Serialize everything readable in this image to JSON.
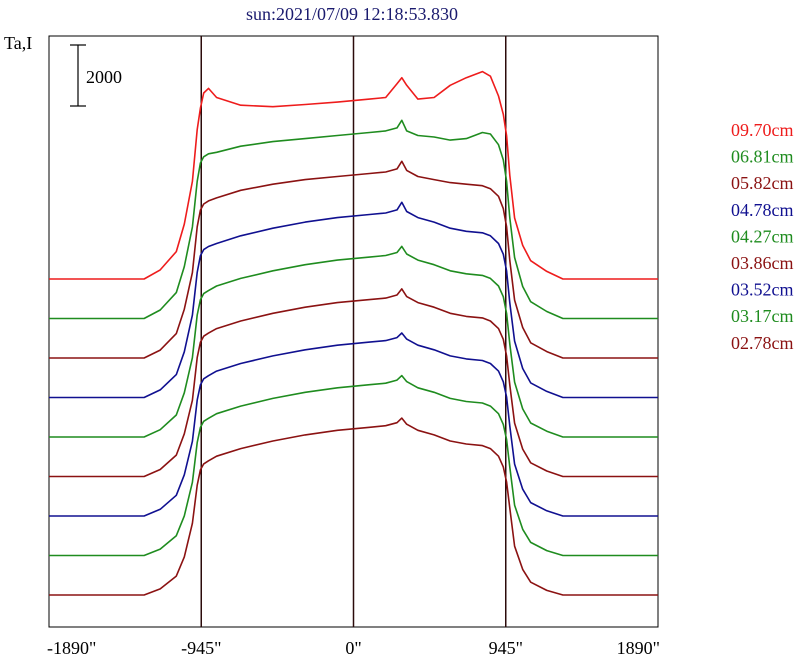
{
  "chart_data": {
    "type": "line",
    "title": "sun:2021/07/09 12:18:53.830",
    "ylabel": "Ta,I",
    "scale_bar_label": "2000",
    "x_ticks": [
      "-1890\"",
      "-945\"",
      "0\"",
      "945\"",
      "1890\""
    ],
    "x_tick_values": [
      -1890,
      -945,
      0,
      945,
      1890
    ],
    "xlim": [
      -1890,
      1890
    ],
    "vertical_lines": [
      -945,
      0,
      945
    ],
    "grid": false,
    "legend_position": "right",
    "x_knots": [
      -1890,
      -1300,
      -1200,
      -1100,
      -1050,
      -1000,
      -970,
      -950,
      -930,
      -900,
      -850,
      -700,
      -500,
      -300,
      -100,
      100,
      200,
      270,
      300,
      330,
      400,
      500,
      600,
      700,
      800,
      850,
      900,
      930,
      950,
      970,
      1000,
      1050,
      1100,
      1200,
      1300,
      1890
    ],
    "series": [
      {
        "name": "09.70cm",
        "color": "#ee1c1c",
        "baseline": 0,
        "values": [
          0,
          0,
          300,
          900,
          1800,
          3200,
          4900,
          5600,
          6100,
          6250,
          5950,
          5700,
          5650,
          5720,
          5800,
          5900,
          5950,
          6400,
          6600,
          6350,
          5900,
          5950,
          6350,
          6600,
          6800,
          6650,
          6000,
          5400,
          4700,
          3400,
          2000,
          1100,
          600,
          250,
          0,
          0
        ]
      },
      {
        "name": "06.81cm",
        "color": "#1f8c1f",
        "baseline": 0,
        "values": [
          0,
          0,
          280,
          850,
          1700,
          3000,
          4500,
          5100,
          5300,
          5400,
          5450,
          5650,
          5800,
          5900,
          6000,
          6100,
          6150,
          6250,
          6500,
          6150,
          6000,
          5950,
          5850,
          5900,
          6100,
          6050,
          5700,
          5200,
          4500,
          3300,
          2000,
          1050,
          550,
          230,
          0,
          0
        ]
      },
      {
        "name": "05.82cm",
        "color": "#8b1212",
        "baseline": 0,
        "values": [
          0,
          0,
          260,
          800,
          1600,
          2800,
          4300,
          4850,
          5050,
          5150,
          5250,
          5500,
          5700,
          5850,
          5950,
          6050,
          6100,
          6200,
          6450,
          6150,
          5950,
          5850,
          5750,
          5700,
          5650,
          5550,
          5300,
          4900,
          4300,
          3200,
          1900,
          1000,
          500,
          210,
          0,
          0
        ]
      },
      {
        "name": "04.78cm",
        "color": "#101090",
        "baseline": 0,
        "values": [
          0,
          0,
          250,
          750,
          1500,
          2700,
          4100,
          4650,
          4850,
          4950,
          5050,
          5300,
          5550,
          5750,
          5900,
          6000,
          6050,
          6150,
          6400,
          6100,
          5900,
          5750,
          5550,
          5450,
          5400,
          5300,
          5050,
          4700,
          4150,
          3100,
          1850,
          950,
          480,
          200,
          0,
          0
        ]
      },
      {
        "name": "04.27cm",
        "color": "#1f8c1f",
        "baseline": 0,
        "values": [
          0,
          0,
          240,
          720,
          1450,
          2600,
          4000,
          4500,
          4700,
          4800,
          4950,
          5200,
          5450,
          5650,
          5800,
          5900,
          5950,
          6050,
          6250,
          6000,
          5800,
          5650,
          5450,
          5350,
          5300,
          5200,
          4950,
          4600,
          4050,
          3050,
          1800,
          920,
          460,
          190,
          0,
          0
        ]
      },
      {
        "name": "03.86cm",
        "color": "#8b1212",
        "baseline": 0,
        "values": [
          0,
          0,
          230,
          700,
          1400,
          2500,
          3900,
          4400,
          4600,
          4700,
          4850,
          5100,
          5350,
          5550,
          5700,
          5800,
          5850,
          5950,
          6150,
          5900,
          5700,
          5550,
          5350,
          5250,
          5200,
          5100,
          4850,
          4500,
          3950,
          3000,
          1750,
          900,
          450,
          180,
          0,
          0
        ]
      },
      {
        "name": "03.52cm",
        "color": "#101090",
        "baseline": 0,
        "values": [
          0,
          0,
          220,
          680,
          1350,
          2450,
          3800,
          4300,
          4500,
          4600,
          4750,
          5000,
          5250,
          5450,
          5600,
          5700,
          5750,
          5850,
          6000,
          5800,
          5600,
          5450,
          5250,
          5150,
          5100,
          5000,
          4750,
          4400,
          3900,
          2950,
          1700,
          880,
          440,
          170,
          0,
          0
        ]
      },
      {
        "name": "03.17cm",
        "color": "#1f8c1f",
        "baseline": 0,
        "values": [
          0,
          0,
          210,
          650,
          1300,
          2400,
          3700,
          4200,
          4400,
          4500,
          4650,
          4900,
          5150,
          5350,
          5500,
          5600,
          5650,
          5750,
          5900,
          5700,
          5500,
          5350,
          5150,
          5050,
          5000,
          4900,
          4650,
          4300,
          3800,
          2900,
          1650,
          860,
          430,
          160,
          0,
          0
        ]
      },
      {
        "name": "02.78cm",
        "color": "#8b1212",
        "baseline": 0,
        "values": [
          0,
          0,
          200,
          620,
          1250,
          2350,
          3600,
          4100,
          4300,
          4400,
          4550,
          4800,
          5050,
          5250,
          5400,
          5500,
          5550,
          5650,
          5800,
          5600,
          5400,
          5250,
          5050,
          4950,
          4900,
          4800,
          4550,
          4200,
          3700,
          2850,
          1600,
          840,
          420,
          150,
          0,
          0
        ]
      }
    ]
  }
}
